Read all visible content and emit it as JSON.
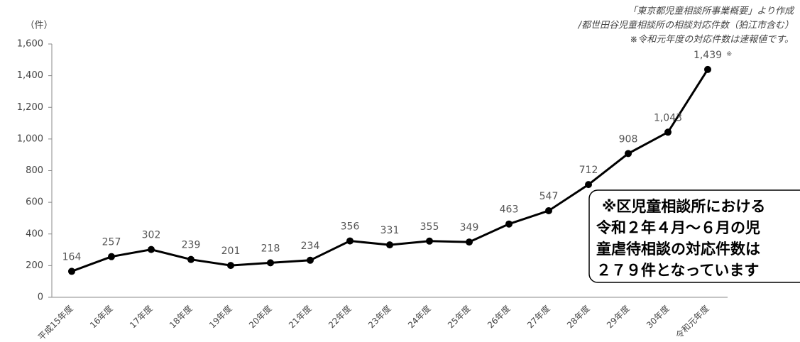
{
  "chart_data": {
    "type": "line",
    "y_axis_label": "（件）",
    "notes": [
      "「東京都児童相談所事業概要」より作成",
      "/都世田谷児童相談所の相談対応件数（狛江市含む）",
      "※令和元年度の対応件数は速報値です。"
    ],
    "last_value_mark": "※",
    "callout": [
      "※区児童相談所における",
      "令和２年４月～６月の児",
      "童虐待相談の対応件数は",
      "２７９件となっています"
    ],
    "categories": [
      "平成15年度",
      "16年度",
      "17年度",
      "18年度",
      "19年度",
      "20年度",
      "21年度",
      "22年度",
      "23年度",
      "24年度",
      "25年度",
      "26年度",
      "27年度",
      "28年度",
      "29年度",
      "30年度",
      "令和元年度"
    ],
    "values": [
      164,
      257,
      302,
      239,
      201,
      218,
      234,
      356,
      331,
      355,
      349,
      463,
      547,
      712,
      908,
      1043,
      1439
    ],
    "value_labels": [
      "164",
      "257",
      "302",
      "239",
      "201",
      "218",
      "234",
      "356",
      "331",
      "355",
      "349",
      "463",
      "547",
      "712",
      "908",
      "1,043",
      "1,439"
    ],
    "color": "#000000",
    "ylim": [
      0,
      1600
    ],
    "yticks": [
      0,
      200,
      400,
      600,
      800,
      {
        "value": 1000,
        "label": "1,000"
      },
      {
        "value": 1200,
        "label": "1,200"
      },
      {
        "value": 1400,
        "label": "1,400"
      },
      {
        "value": 1600,
        "label": "1,600"
      }
    ],
    "grid": false
  }
}
